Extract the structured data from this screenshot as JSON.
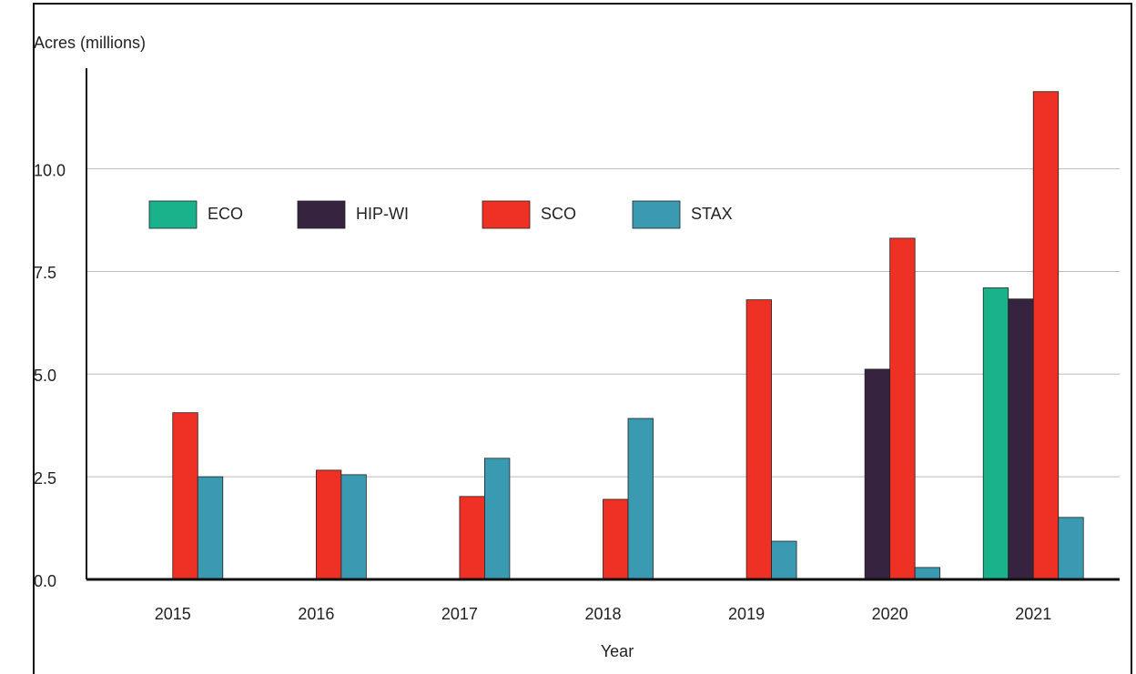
{
  "chart_data": {
    "type": "bar",
    "ylabel": "Acres (millions)",
    "xlabel": "Year",
    "categories": [
      "2015",
      "2016",
      "2017",
      "2018",
      "2019",
      "2020",
      "2021"
    ],
    "series": [
      {
        "name": "ECO",
        "color": "#1ab28a",
        "values": [
          0,
          0,
          0,
          0,
          0,
          0,
          7.1
        ]
      },
      {
        "name": "HIP-WI",
        "color": "#35233f",
        "values": [
          0,
          0,
          0,
          0,
          0,
          5.12,
          6.83
        ]
      },
      {
        "name": "SCO",
        "color": "#ee3124",
        "values": [
          4.06,
          2.66,
          2.02,
          1.95,
          6.81,
          8.31,
          11.88
        ]
      },
      {
        "name": "STAX",
        "color": "#3a9ab1",
        "values": [
          2.5,
          2.55,
          2.95,
          3.92,
          0.93,
          0.29,
          1.51
        ]
      }
    ],
    "ylim": [
      0,
      12.45
    ],
    "yticks": [
      {
        "value": 0,
        "label": "0.0"
      },
      2.5,
      {
        "value": 5,
        "label": "5.0"
      },
      7.5,
      {
        "value": 10,
        "label": "10.0"
      }
    ],
    "grid": true,
    "legend": "upper-left"
  }
}
